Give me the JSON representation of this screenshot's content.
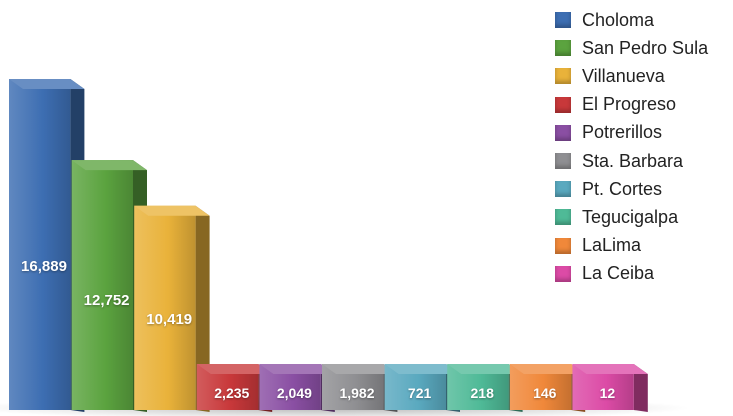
{
  "chart_data": {
    "type": "bar",
    "title": "",
    "xlabel": "",
    "ylabel": "",
    "ylim": [
      0,
      17500
    ],
    "grid": false,
    "legend_placement": "top-right",
    "categories": [
      "Choloma",
      "San Pedro Sula",
      "Villanueva",
      "El Progreso",
      "Potrerillos",
      "Sta. Barbara",
      "Pt. Cortes",
      "Tegucigalpa",
      "LaLima",
      "La Ceiba"
    ],
    "values": [
      16889,
      12752,
      10419,
      2235,
      2049,
      1982,
      721,
      218,
      146,
      12
    ],
    "value_labels": [
      "16,889",
      "12,752",
      "10,419",
      "2,235",
      "2,049",
      "1,982",
      "721",
      "218",
      "146",
      "12"
    ],
    "colors": [
      "#3d6eb2",
      "#5ba33f",
      "#e9b23a",
      "#c8383a",
      "#8a4fa3",
      "#8f8f92",
      "#5aa9bf",
      "#4fba97",
      "#f0883a",
      "#dc4ba6"
    ]
  }
}
